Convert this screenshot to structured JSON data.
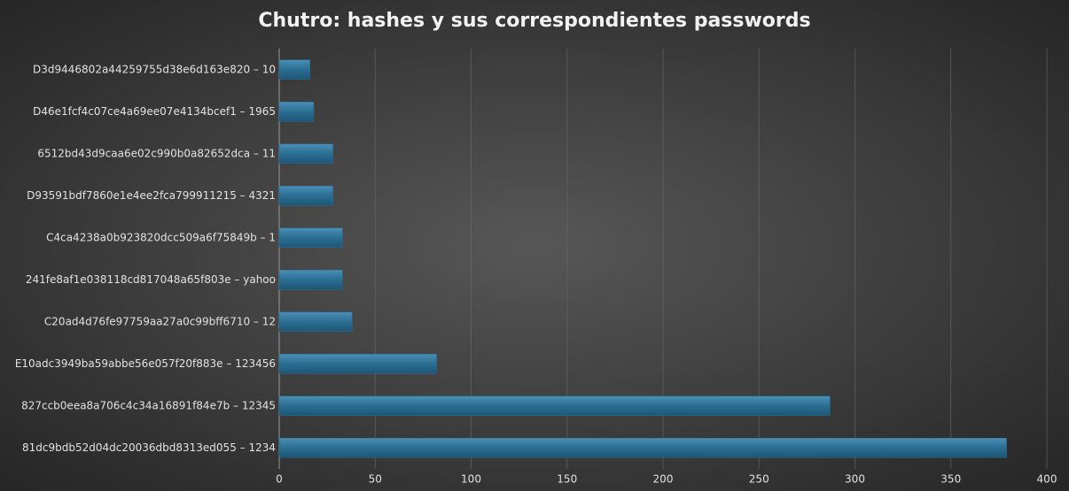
{
  "chart_data": {
    "type": "hbar",
    "title": "Chutro: hashes y sus correspondientes passwords",
    "categories": [
      "D3d9446802a44259755d38e6d163e820 – 10",
      "D46e1fcf4c07ce4a69ee07e4134bcef1 – 1965",
      "6512bd43d9caa6e02c990b0a82652dca – 11",
      "D93591bdf7860e1e4ee2fca799911215 – 4321",
      "C4ca4238a0b923820dcc509a6f75849b – 1",
      "241fe8af1e038118cd817048a65f803e – yahoo",
      "C20ad4d76fe97759aa27a0c99bff6710 – 12",
      "E10adc3949ba59abbe56e057f20f883e – 123456",
      "827ccb0eea8a706c4c34a16891f84e7b – 12345",
      "81dc9bdb52d04dc20036dbd8313ed055 – 1234"
    ],
    "values": [
      16,
      18,
      28,
      28,
      33,
      33,
      38,
      82,
      287,
      379
    ],
    "color": "#2b6e93",
    "xlim": [
      0,
      400
    ],
    "xticks": [
      0,
      50,
      100,
      150,
      200,
      250,
      300,
      350,
      400
    ],
    "grid": true
  }
}
